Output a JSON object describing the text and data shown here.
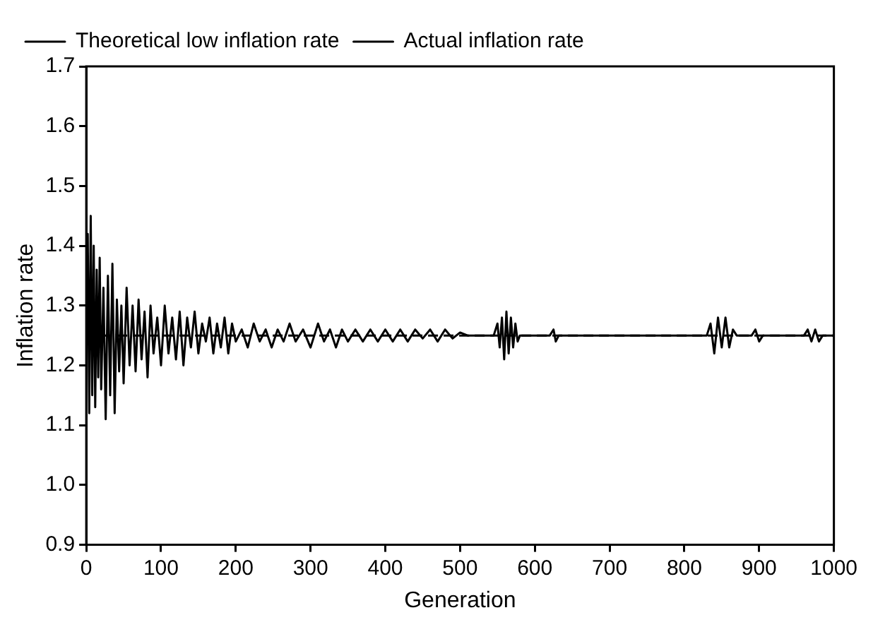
{
  "chart_data": {
    "type": "line",
    "xlabel": "Generation",
    "ylabel": "Inflation rate",
    "xlim": [
      0,
      1000
    ],
    "xticks": [
      0,
      100,
      200,
      300,
      400,
      500,
      600,
      700,
      800,
      900,
      1000
    ],
    "ylim": [
      0.9,
      1.7
    ],
    "yticks": [
      {
        "value": 0.9,
        "label": "0.9"
      },
      {
        "value": 1.0,
        "label": "1.0"
      },
      {
        "value": 1.1,
        "label": "1.1"
      },
      {
        "value": 1.2,
        "label": "1.2"
      },
      {
        "value": 1.3,
        "label": "1.3"
      },
      {
        "value": 1.4,
        "label": "1.4"
      },
      {
        "value": 1.5,
        "label": "1.5"
      },
      {
        "value": 1.6,
        "label": "1.6"
      },
      {
        "value": 1.7,
        "label": "1.7"
      }
    ],
    "grid": false,
    "legend": "top left",
    "series": [
      {
        "name": "Theoretical low inflation rate",
        "color": "#000000",
        "line_style": "dashed",
        "x": [
          0,
          1000
        ],
        "values": [
          1.25,
          1.25
        ]
      },
      {
        "name": "Actual inflation rate",
        "color": "#000000",
        "line_style": "solid",
        "x": [
          0,
          2,
          4,
          6,
          8,
          10,
          12,
          14,
          16,
          18,
          20,
          23,
          26,
          29,
          32,
          35,
          38,
          41,
          44,
          47,
          50,
          54,
          58,
          62,
          66,
          70,
          74,
          78,
          82,
          86,
          90,
          95,
          100,
          105,
          110,
          115,
          120,
          125,
          130,
          135,
          140,
          145,
          150,
          155,
          160,
          165,
          170,
          175,
          180,
          185,
          190,
          195,
          200,
          208,
          216,
          224,
          232,
          240,
          248,
          256,
          264,
          272,
          280,
          290,
          300,
          310,
          318,
          326,
          334,
          342,
          350,
          360,
          370,
          380,
          390,
          400,
          410,
          420,
          430,
          440,
          450,
          460,
          470,
          480,
          490,
          500,
          510,
          520,
          530,
          545,
          550,
          553,
          556,
          559,
          562,
          565,
          568,
          571,
          574,
          577,
          580,
          600,
          620,
          625,
          628,
          632,
          660,
          700,
          730,
          760,
          800,
          830,
          835,
          840,
          845,
          850,
          855,
          860,
          865,
          870,
          890,
          895,
          900,
          905,
          960,
          965,
          970,
          975,
          980,
          985,
          1000
        ],
        "values": [
          1.25,
          1.42,
          1.12,
          1.45,
          1.15,
          1.4,
          1.13,
          1.36,
          1.18,
          1.38,
          1.16,
          1.33,
          1.11,
          1.35,
          1.15,
          1.37,
          1.12,
          1.31,
          1.19,
          1.3,
          1.17,
          1.33,
          1.2,
          1.3,
          1.19,
          1.31,
          1.21,
          1.29,
          1.18,
          1.3,
          1.22,
          1.28,
          1.2,
          1.3,
          1.22,
          1.28,
          1.21,
          1.29,
          1.2,
          1.28,
          1.23,
          1.29,
          1.22,
          1.27,
          1.24,
          1.28,
          1.22,
          1.27,
          1.23,
          1.28,
          1.22,
          1.27,
          1.24,
          1.26,
          1.23,
          1.27,
          1.24,
          1.26,
          1.23,
          1.26,
          1.24,
          1.27,
          1.24,
          1.26,
          1.23,
          1.27,
          1.24,
          1.26,
          1.23,
          1.26,
          1.24,
          1.26,
          1.24,
          1.26,
          1.24,
          1.26,
          1.24,
          1.26,
          1.24,
          1.26,
          1.245,
          1.26,
          1.24,
          1.26,
          1.245,
          1.255,
          1.25,
          1.25,
          1.25,
          1.25,
          1.27,
          1.23,
          1.28,
          1.21,
          1.29,
          1.22,
          1.28,
          1.23,
          1.27,
          1.24,
          1.25,
          1.25,
          1.25,
          1.26,
          1.24,
          1.25,
          1.25,
          1.25,
          1.25,
          1.25,
          1.25,
          1.25,
          1.27,
          1.22,
          1.28,
          1.23,
          1.28,
          1.23,
          1.26,
          1.25,
          1.25,
          1.26,
          1.24,
          1.25,
          1.25,
          1.26,
          1.24,
          1.26,
          1.24,
          1.25,
          1.25
        ]
      }
    ]
  }
}
